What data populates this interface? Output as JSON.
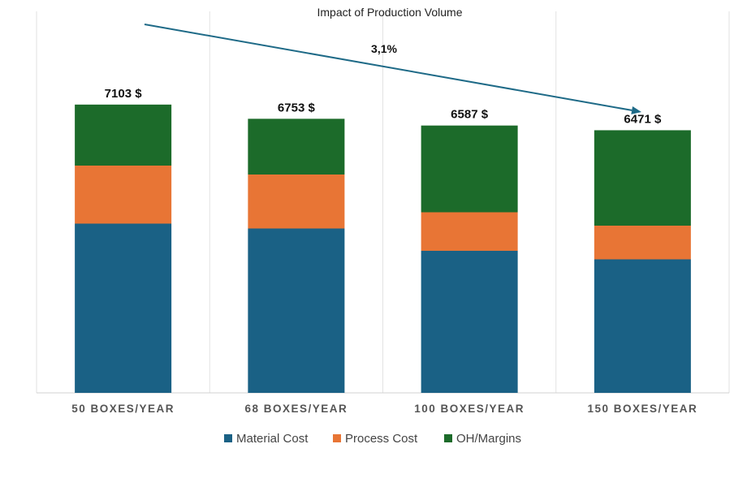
{
  "chart_data": {
    "type": "bar",
    "stacked": true,
    "title": "Impact of Production Volume",
    "categories": [
      "50 BOXES/YEAR",
      "68 BOXES/YEAR",
      "100 BOXES/YEAR",
      "150 BOXES/YEAR"
    ],
    "series": [
      {
        "name": "Material Cost",
        "values": [
          4170,
          4050,
          3500,
          3290
        ]
      },
      {
        "name": "Process Cost",
        "values": [
          1430,
          1330,
          950,
          830
        ]
      },
      {
        "name": "OH/Margins",
        "values": [
          1503,
          1373,
          2137,
          2351
        ]
      }
    ],
    "totals": [
      7103,
      6753,
      6587,
      6471
    ],
    "total_labels": [
      "7103 $",
      "6753 $",
      "6587 $",
      "6471 $"
    ],
    "annotation": "3,1%",
    "trend_arrow": {
      "from_category": 0,
      "to_category": 3
    },
    "ylim": [
      0,
      12950
    ],
    "grid": "vertical separators between categories",
    "legend_position": "bottom",
    "colors": {
      "Material Cost": "#1a6185",
      "Process Cost": "#e87535",
      "OH/Margins": "#1c6b2a",
      "arrow": "#1e6a87"
    }
  }
}
